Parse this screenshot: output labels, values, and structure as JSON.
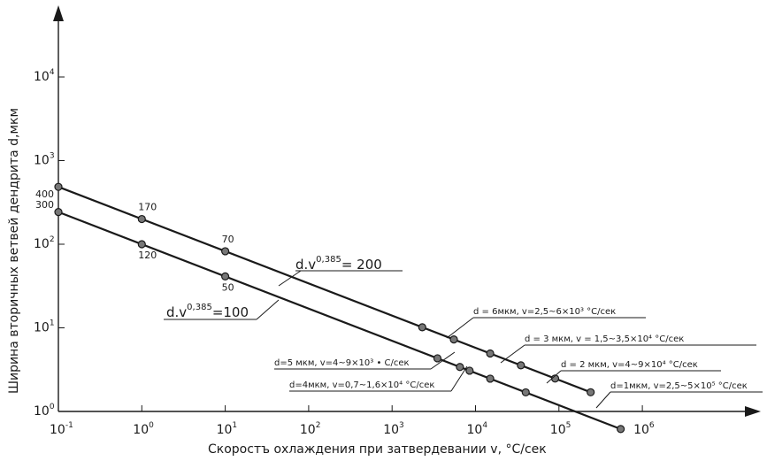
{
  "chart_data": {
    "type": "line",
    "log_x": true,
    "log_y": true,
    "xlim": [
      0.1,
      3000000
    ],
    "ylim": [
      0.8,
      50000
    ],
    "x_ticks": [
      {
        "value": 0.1,
        "base": "10",
        "exp": "-1"
      },
      {
        "value": 1,
        "base": "10",
        "exp": "0"
      },
      {
        "value": 10,
        "base": "10",
        "exp": "1"
      },
      {
        "value": 100,
        "base": "10",
        "exp": "2"
      },
      {
        "value": 1000,
        "base": "10",
        "exp": "3"
      },
      {
        "value": 10000,
        "base": "10",
        "exp": "4"
      },
      {
        "value": 100000,
        "base": "10",
        "exp": "5"
      },
      {
        "value": 1000000,
        "base": "10",
        "exp": "6"
      }
    ],
    "y_ticks": [
      {
        "value": 1,
        "base": "10",
        "exp": "0"
      },
      {
        "value": 10,
        "base": "10",
        "exp": "1"
      },
      {
        "value": 100,
        "base": "10",
        "exp": "2"
      },
      {
        "value": 1000,
        "base": "10",
        "exp": "3"
      },
      {
        "value": 10000,
        "base": "10",
        "exp": "4"
      }
    ],
    "y_extra_labels": [
      {
        "value": 400,
        "text": "400"
      },
      {
        "value": 300,
        "text": "300"
      }
    ],
    "xlabel": "Скоростъ охлаждения при затвердевании v, °С/сек",
    "ylabel": "Ширина вторичных ветвей дендрита d,мкм",
    "series": [
      {
        "equation": {
          "base": "d.v",
          "exp": "0,385",
          "rhs": "= 200"
        },
        "x_line": [
          0.1,
          240000
        ],
        "points": [
          [
            0.1,
            400
          ],
          [
            1,
            170
          ],
          [
            10,
            70
          ],
          [
            2300,
            6
          ],
          [
            5500,
            6
          ],
          [
            15000,
            4
          ],
          [
            35000,
            3
          ],
          [
            90000,
            2
          ],
          [
            240000,
            1
          ]
        ]
      },
      {
        "equation": {
          "base": "d.v",
          "exp": "0,385",
          "rhs": "=100"
        },
        "x_line": [
          0.1,
          550000
        ],
        "points": [
          [
            0.1,
            300
          ],
          [
            1,
            120
          ],
          [
            10,
            50
          ],
          [
            3500,
            5
          ],
          [
            6500,
            4
          ],
          [
            8500,
            5
          ],
          [
            15000,
            3
          ],
          [
            40000,
            2
          ],
          [
            550000,
            1
          ]
        ]
      }
    ],
    "point_labels": [
      {
        "x": 1,
        "y": 170,
        "text": "170",
        "pos": "above"
      },
      {
        "x": 1,
        "y": 120,
        "text": "120",
        "pos": "below"
      },
      {
        "x": 10,
        "y": 70,
        "text": "70",
        "pos": "above"
      },
      {
        "x": 10,
        "y": 50,
        "text": "50",
        "pos": "below"
      }
    ],
    "annotations": [
      {
        "text": "d = 6мкм, v=2,5~6×10³ °С/сек"
      },
      {
        "text": "d = 3 мкм, v = 1,5~3,5×10⁴ °С/сек"
      },
      {
        "text": "d=5 мкм, v=4~9×10³ • С/сек"
      },
      {
        "text": "d = 2 мкм, v=4~9×10⁴ °С/сек"
      },
      {
        "text": "d=4мкм, v=0,7~1,6×10⁴ °С/сек"
      },
      {
        "text": "d=1мкм, v=2,5~5×10⁵ °С/сек"
      }
    ],
    "grid": false,
    "legend": "none"
  }
}
